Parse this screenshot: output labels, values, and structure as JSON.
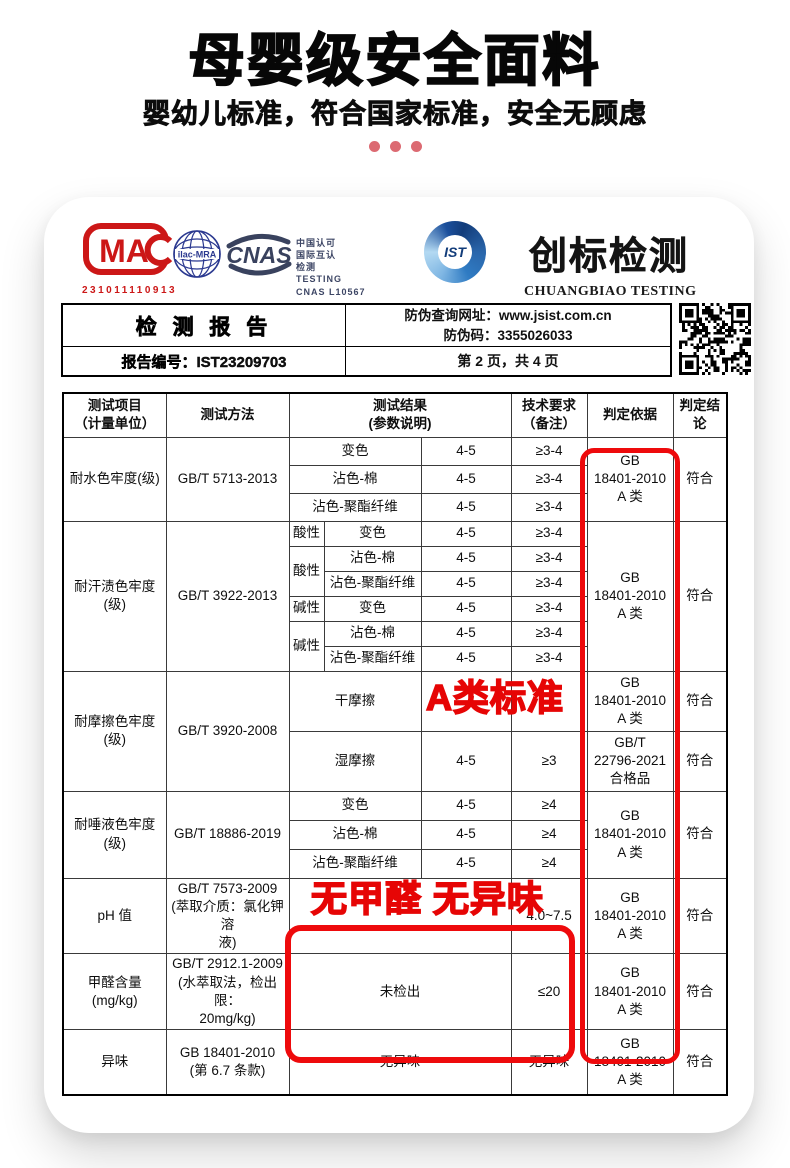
{
  "hero": {
    "title": "母婴级安全面料",
    "subtitle": "婴幼儿标准，符合国家标准，安全无顾虑"
  },
  "logos": {
    "cma": {
      "letters": "MA",
      "cert_number": "231011110913"
    },
    "ilac": {
      "label": "ilac-MRA"
    },
    "cnas": {
      "label": "CNAS"
    },
    "accreditation_lines": [
      "中国认可",
      "国际互认",
      "检测",
      "TESTING",
      "CNAS L10567"
    ],
    "ist": {
      "label": "IST"
    },
    "brand": {
      "name": "创标检测",
      "name_en": "CHUANGBIAO TESTING"
    }
  },
  "report_band": {
    "title": "检 测 报 告",
    "antifake_url": "防伪查询网址：www.jsist.com.cn",
    "antifake_code": "防伪码：3355026033",
    "report_no": "报告编号：IST23209703",
    "page_info": "第 2 页，共 4 页"
  },
  "table": {
    "header": {
      "item": [
        "测试项目",
        "（计量单位）"
      ],
      "method": "测试方法",
      "result": [
        "测试结果",
        "(参数说明)"
      ],
      "requirement": [
        "技术要求",
        "（备注）"
      ],
      "basis": "判定依据",
      "verdict": "判定结论"
    },
    "groups": [
      {
        "item": [
          "耐水色牢度(级)"
        ],
        "method": [
          "GB/T 5713-2013"
        ],
        "rows": [
          {
            "name": "变色",
            "result": "4-5",
            "req": "≥3-4"
          },
          {
            "name": "沾色-棉",
            "result": "4-5",
            "req": "≥3-4"
          },
          {
            "name": "沾色-聚酯纤维",
            "result": "4-5",
            "req": "≥3-4"
          }
        ],
        "basis": [
          "GB",
          "18401-2010",
          "A 类"
        ],
        "verdict": "符合"
      },
      {
        "item": [
          "耐汗渍色牢度",
          "(级)"
        ],
        "method": [
          "GB/T 3922-2013"
        ],
        "rows": [
          {
            "qual": "酸性",
            "name": "变色",
            "result": "4-5",
            "req": "≥3-4"
          },
          {
            "qual": "酸性",
            "name": "沾色-棉",
            "result": "4-5",
            "req": "≥3-4"
          },
          {
            "name": "沾色-聚酯纤维",
            "result": "4-5",
            "req": "≥3-4"
          },
          {
            "qual": "碱性",
            "name": "变色",
            "result": "4-5",
            "req": "≥3-4"
          },
          {
            "qual": "碱性",
            "name": "沾色-棉",
            "result": "4-5",
            "req": "≥3-4"
          },
          {
            "name": "沾色-聚酯纤维",
            "result": "4-5",
            "req": "≥3-4"
          }
        ],
        "basis": [
          "GB",
          "18401-2010",
          "A 类"
        ],
        "verdict": "符合"
      },
      {
        "item": [
          "耐摩擦色牢度",
          "(级)"
        ],
        "method": [
          "GB/T 3920-2008"
        ],
        "rows": [
          {
            "name": "干摩擦",
            "result": "",
            "req": "",
            "basis": [
              "GB",
              "18401-2010",
              "A 类"
            ],
            "verdict": "符合"
          },
          {
            "name": "湿摩擦",
            "result": "4-5",
            "req": "≥3",
            "basis": [
              "GB/T",
              "22796-2021",
              "合格品"
            ],
            "verdict": "符合"
          }
        ]
      },
      {
        "item": [
          "耐唾液色牢度",
          "(级)"
        ],
        "method": [
          "GB/T 18886-2019"
        ],
        "rows": [
          {
            "name": "变色",
            "result": "4-5",
            "req": "≥4"
          },
          {
            "name": "沾色-棉",
            "result": "4-5",
            "req": "≥4"
          },
          {
            "name": "沾色-聚酯纤维",
            "result": "4-5",
            "req": "≥4"
          }
        ],
        "basis": [
          "GB",
          "18401-2010",
          "A 类"
        ],
        "verdict": "符合"
      },
      {
        "item": [
          "pH 值"
        ],
        "method": [
          "GB/T 7573-2009",
          "(萃取介质：氯化钾溶",
          "液)"
        ],
        "result": "",
        "req": "4.0~7.5",
        "basis": [
          "GB",
          "18401-2010",
          "A 类"
        ],
        "verdict": "符合"
      },
      {
        "item": [
          "甲醛含量",
          "(mg/kg)"
        ],
        "method": [
          "GB/T 2912.1-2009",
          "(水萃取法，检出限：",
          "20mg/kg)"
        ],
        "result": "未检出",
        "req": "≤20",
        "basis": [
          "GB",
          "18401-2010",
          "A 类"
        ],
        "verdict": "符合"
      },
      {
        "item": [
          "异味"
        ],
        "method": [
          "GB 18401-2010",
          "(第 6.7 条款)"
        ],
        "result": "无异味",
        "req": "无异味",
        "basis": [
          "GB",
          "18401-2010",
          "A 类"
        ],
        "verdict": "符合"
      }
    ]
  },
  "annotations": {
    "a_class": "A类标准",
    "no_formaldehyde": "无甲醛 无异味"
  },
  "colors": {
    "annotation_red": "#e60012",
    "cma_red": "#cc1717",
    "accreditation_navy": "#3d4665",
    "ilac_navy": "#2b3990",
    "ist_blue": "#2f7bc3",
    "dot_pink": "#dc6a72"
  }
}
